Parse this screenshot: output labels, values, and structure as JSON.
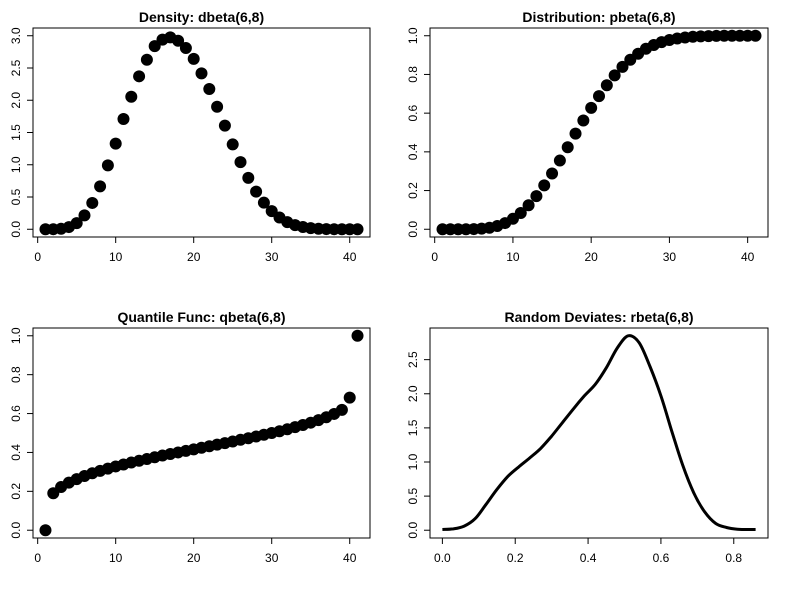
{
  "chart_data": [
    {
      "type": "scatter",
      "title": "Density: dbeta(6,8)",
      "xlabel": "",
      "ylabel": "",
      "xlim": [
        1,
        41
      ],
      "ylim": [
        0,
        3.0
      ],
      "x_ticks": [
        "0",
        "10",
        "20",
        "30",
        "40"
      ],
      "y_ticks": [
        "0.0",
        "0.5",
        "1.0",
        "1.5",
        "2.0",
        "2.5",
        "3.0"
      ],
      "grid": false,
      "series": [
        {
          "x": [
            1,
            2,
            3,
            4,
            5,
            6,
            7,
            8,
            9,
            10,
            11,
            12,
            13,
            14,
            15,
            16,
            17,
            18,
            19,
            20,
            21,
            22,
            23,
            24,
            25,
            26,
            27,
            28,
            29,
            30,
            31,
            32,
            33,
            34,
            35,
            36,
            37,
            38,
            39,
            40,
            41
          ],
          "values": [
            0,
            0.001,
            0.007,
            0.034,
            0.095,
            0.216,
            0.408,
            0.665,
            0.99,
            1.327,
            1.709,
            2.054,
            2.371,
            2.627,
            2.839,
            2.939,
            2.975,
            2.922,
            2.809,
            2.642,
            2.416,
            2.175,
            1.9,
            1.607,
            1.315,
            1.041,
            0.797,
            0.583,
            0.412,
            0.281,
            0.182,
            0.111,
            0.064,
            0.035,
            0.017,
            0.008,
            0.003,
            0.001,
            0,
            0,
            0
          ]
        }
      ]
    },
    {
      "type": "scatter",
      "title": "Distribution: pbeta(6,8)",
      "xlabel": "",
      "ylabel": "",
      "xlim": [
        1,
        41
      ],
      "ylim": [
        0,
        1.0
      ],
      "x_ticks": [
        "0",
        "10",
        "20",
        "30",
        "40"
      ],
      "y_ticks": [
        "0.0",
        "0.2",
        "0.4",
        "0.6",
        "0.8",
        "1.0"
      ],
      "grid": false,
      "series": [
        {
          "x": [
            1,
            2,
            3,
            4,
            5,
            6,
            7,
            8,
            9,
            10,
            11,
            12,
            13,
            14,
            15,
            16,
            17,
            18,
            19,
            20,
            21,
            22,
            23,
            24,
            25,
            26,
            27,
            28,
            29,
            30,
            31,
            32,
            33,
            34,
            35,
            36,
            37,
            38,
            39,
            40,
            41
          ],
          "values": [
            0,
            0,
            0,
            0,
            0.001,
            0.003,
            0.008,
            0.017,
            0.032,
            0.054,
            0.084,
            0.124,
            0.171,
            0.227,
            0.288,
            0.355,
            0.424,
            0.494,
            0.562,
            0.627,
            0.688,
            0.744,
            0.795,
            0.839,
            0.876,
            0.907,
            0.933,
            0.952,
            0.967,
            0.978,
            0.986,
            0.991,
            0.995,
            0.997,
            0.998,
            0.999,
            1,
            1,
            1,
            1,
            1
          ]
        }
      ]
    },
    {
      "type": "scatter",
      "title": "Quantile Func: qbeta(6,8)",
      "xlabel": "",
      "ylabel": "",
      "xlim": [
        1,
        41
      ],
      "ylim": [
        0,
        1.0
      ],
      "x_ticks": [
        "0",
        "10",
        "20",
        "30",
        "40"
      ],
      "y_ticks": [
        "0.0",
        "0.2",
        "0.4",
        "0.6",
        "0.8",
        "1.0"
      ],
      "grid": false,
      "series": [
        {
          "x": [
            1,
            2,
            3,
            4,
            5,
            6,
            7,
            8,
            9,
            10,
            11,
            12,
            13,
            14,
            15,
            16,
            17,
            18,
            19,
            20,
            21,
            22,
            23,
            24,
            25,
            26,
            27,
            28,
            29,
            30,
            31,
            32,
            33,
            34,
            35,
            36,
            37,
            38,
            39,
            40,
            41
          ],
          "values": [
            0,
            0.19,
            0.222,
            0.245,
            0.263,
            0.279,
            0.293,
            0.305,
            0.317,
            0.328,
            0.338,
            0.348,
            0.357,
            0.366,
            0.375,
            0.384,
            0.392,
            0.4,
            0.408,
            0.416,
            0.424,
            0.432,
            0.44,
            0.448,
            0.456,
            0.465,
            0.473,
            0.482,
            0.491,
            0.5,
            0.509,
            0.519,
            0.53,
            0.541,
            0.553,
            0.566,
            0.581,
            0.598,
            0.619,
            0.682,
            1.0
          ]
        }
      ]
    },
    {
      "type": "line",
      "title": "Random Deviates: rbeta(6,8)",
      "xlabel": "",
      "ylabel": "",
      "xlim": [
        0.0,
        0.86
      ],
      "ylim": [
        0,
        2.85
      ],
      "x_ticks": [
        "0.0",
        "0.2",
        "0.4",
        "0.6",
        "0.8"
      ],
      "y_ticks": [
        "0.0",
        "0.5",
        "1.0",
        "1.5",
        "2.0",
        "2.5"
      ],
      "grid": false,
      "series": [
        {
          "x": [
            0.0,
            0.03,
            0.06,
            0.09,
            0.12,
            0.15,
            0.18,
            0.21,
            0.24,
            0.27,
            0.3,
            0.33,
            0.36,
            0.39,
            0.42,
            0.45,
            0.48,
            0.51,
            0.54,
            0.57,
            0.6,
            0.63,
            0.66,
            0.69,
            0.72,
            0.75,
            0.78,
            0.81,
            0.84,
            0.86
          ],
          "values": [
            0.01,
            0.02,
            0.06,
            0.17,
            0.38,
            0.6,
            0.79,
            0.93,
            1.06,
            1.2,
            1.38,
            1.58,
            1.78,
            1.97,
            2.14,
            2.38,
            2.67,
            2.85,
            2.75,
            2.4,
            1.97,
            1.45,
            0.95,
            0.55,
            0.27,
            0.1,
            0.04,
            0.015,
            0.01,
            0.01
          ]
        }
      ]
    }
  ]
}
